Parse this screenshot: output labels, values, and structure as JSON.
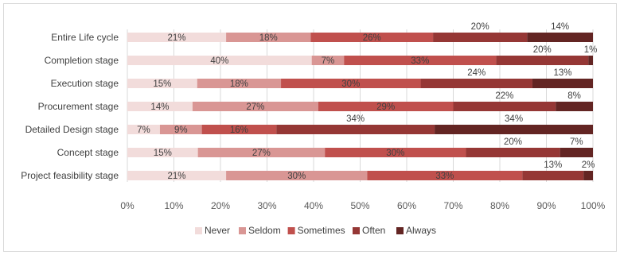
{
  "chart_data": {
    "type": "bar",
    "orientation": "horizontal",
    "stacked": "percent",
    "title": "",
    "xlabel": "",
    "ylabel": "",
    "xlim": [
      0,
      100
    ],
    "x_ticks": [
      "0%",
      "10%",
      "20%",
      "30%",
      "40%",
      "50%",
      "60%",
      "70%",
      "80%",
      "90%",
      "100%"
    ],
    "grid": true,
    "legend_position": "bottom",
    "categories": [
      "Entire Life cycle",
      "Completion stage",
      "Execution stage",
      "Procurement stage",
      "Detailed Design stage",
      "Concept stage",
      "Project feasibility stage"
    ],
    "series": [
      {
        "name": "Never",
        "color": "#f2dcdb",
        "values": [
          21,
          40,
          15,
          14,
          7,
          15,
          21
        ]
      },
      {
        "name": "Seldom",
        "color": "#d99694",
        "values": [
          18,
          7,
          18,
          27,
          9,
          27,
          30
        ]
      },
      {
        "name": "Sometimes",
        "color": "#c0504d",
        "values": [
          26,
          33,
          30,
          29,
          16,
          30,
          33
        ]
      },
      {
        "name": "Often",
        "color": "#953735",
        "values": [
          20,
          20,
          24,
          22,
          34,
          20,
          13
        ]
      },
      {
        "name": "Always",
        "color": "#632523",
        "values": [
          14,
          1,
          13,
          8,
          34,
          7,
          2
        ]
      }
    ],
    "data_labels": [
      [
        "21%",
        "18%",
        "26%",
        "20%",
        "14%"
      ],
      [
        "40%",
        "7%",
        "33%",
        "20%",
        "1%"
      ],
      [
        "15%",
        "18%",
        "30%",
        "24%",
        "13%"
      ],
      [
        "14%",
        "27%",
        "29%",
        "22%",
        "8%"
      ],
      [
        "7%",
        "9%",
        "16%",
        "34%",
        "34%"
      ],
      [
        "15%",
        "27%",
        "30%",
        "20%",
        "7%"
      ],
      [
        "21%",
        "30%",
        "33%",
        "13%",
        "2%"
      ]
    ]
  }
}
